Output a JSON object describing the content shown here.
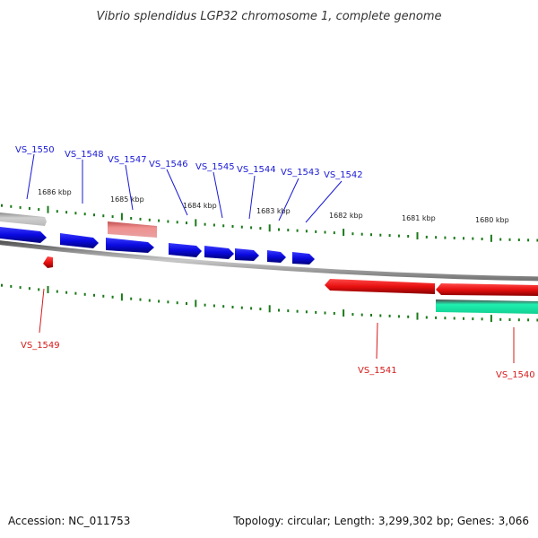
{
  "title": "Vibrio splendidus LGP32 chromosome 1, complete genome",
  "footer": {
    "accession": "Accession: NC_011753",
    "summary": "Topology: circular; Length: 3,299,302 bp; Genes: 3,066"
  },
  "kbp_labels": [
    "1686 kbp",
    "1685 kbp",
    "1684 kbp",
    "1683 kbp",
    "1682 kbp",
    "1681 kbp",
    "1680 kbp"
  ],
  "genes_forward": [
    {
      "id": "VS_1550",
      "color": "#b8b8b8"
    },
    {
      "id": "VS_1548",
      "color": "#1010e0"
    },
    {
      "id": "VS_1547",
      "color": "#e87a7a"
    },
    {
      "id": "VS_1546",
      "color": "#1010e0"
    },
    {
      "id": "VS_1545",
      "color": "#1010e0"
    },
    {
      "id": "VS_1544",
      "color": "#1010e0"
    },
    {
      "id": "VS_1543",
      "color": "#1010e0"
    },
    {
      "id": "VS_1542",
      "color": "#1010e0"
    }
  ],
  "genes_reverse": [
    {
      "id": "VS_1549",
      "color": "#e81010"
    },
    {
      "id": "VS_1541",
      "color": "#e81010"
    },
    {
      "id": "VS_1540",
      "color": "#10e0a0"
    }
  ],
  "colors": {
    "label_forward": "#1a1ad6",
    "label_reverse": "#d61a1a",
    "tick": "#1a7a1a",
    "backbone": "#888888"
  }
}
